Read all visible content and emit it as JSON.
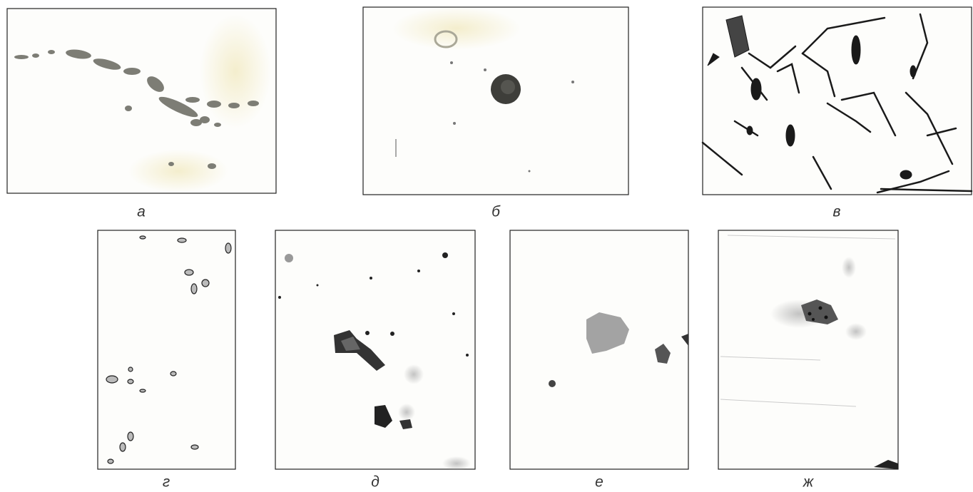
{
  "panels": [
    {
      "label": "а"
    },
    {
      "label": "б"
    },
    {
      "label": "в"
    },
    {
      "label": "г"
    },
    {
      "label": "д"
    },
    {
      "label": "е"
    },
    {
      "label": "ж"
    }
  ]
}
